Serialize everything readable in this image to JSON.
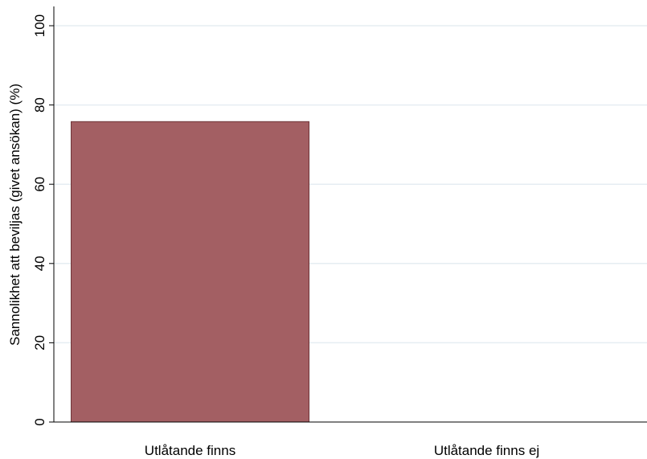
{
  "chart_data": {
    "type": "bar",
    "categories": [
      "Utlåtande finns",
      "Utlåtande finns ej"
    ],
    "values": [
      75.8,
      0
    ],
    "ylabel": "Sannolikhet att beviljas (givet ansökan) (%)",
    "xlabel": "",
    "ylim": [
      0,
      100
    ],
    "yticks": [
      "0",
      "20",
      "40",
      "60",
      "80",
      "100"
    ],
    "grid": true,
    "colors": {
      "bar": "#a35f63",
      "bar_edge": "#6e3538",
      "grid": "#e6edf2",
      "axis": "#000000"
    }
  }
}
